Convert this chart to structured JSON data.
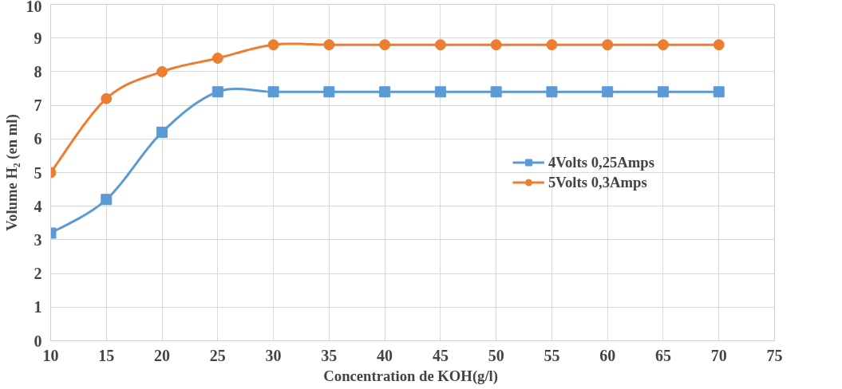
{
  "chart_data": {
    "type": "line",
    "xlabel": "Concentration  de KOH(g/l)",
    "ylabel": "Volume H₂ (en ml)",
    "x": [
      10,
      15,
      20,
      25,
      30,
      35,
      40,
      45,
      50,
      55,
      60,
      65,
      70
    ],
    "series": [
      {
        "name": "4Volts 0,25Amps",
        "color": "#5b9bd5",
        "marker": "square",
        "values": [
          3.2,
          4.2,
          6.2,
          7.4,
          7.4,
          7.4,
          7.4,
          7.4,
          7.4,
          7.4,
          7.4,
          7.4,
          7.4
        ]
      },
      {
        "name": "5Volts 0,3Amps",
        "color": "#ed7d31",
        "marker": "circle",
        "values": [
          5.0,
          7.2,
          8.0,
          8.4,
          8.8,
          8.8,
          8.8,
          8.8,
          8.8,
          8.8,
          8.8,
          8.8,
          8.8
        ]
      }
    ],
    "xlim": [
      10,
      75
    ],
    "xticks": [
      10,
      15,
      20,
      25,
      30,
      35,
      40,
      45,
      50,
      55,
      60,
      65,
      70,
      75
    ],
    "ylim": [
      0,
      10
    ],
    "yticks": [
      0,
      1,
      2,
      3,
      4,
      5,
      6,
      7,
      8,
      9,
      10
    ],
    "grid": true,
    "legend": "right",
    "line_style": "solid"
  }
}
